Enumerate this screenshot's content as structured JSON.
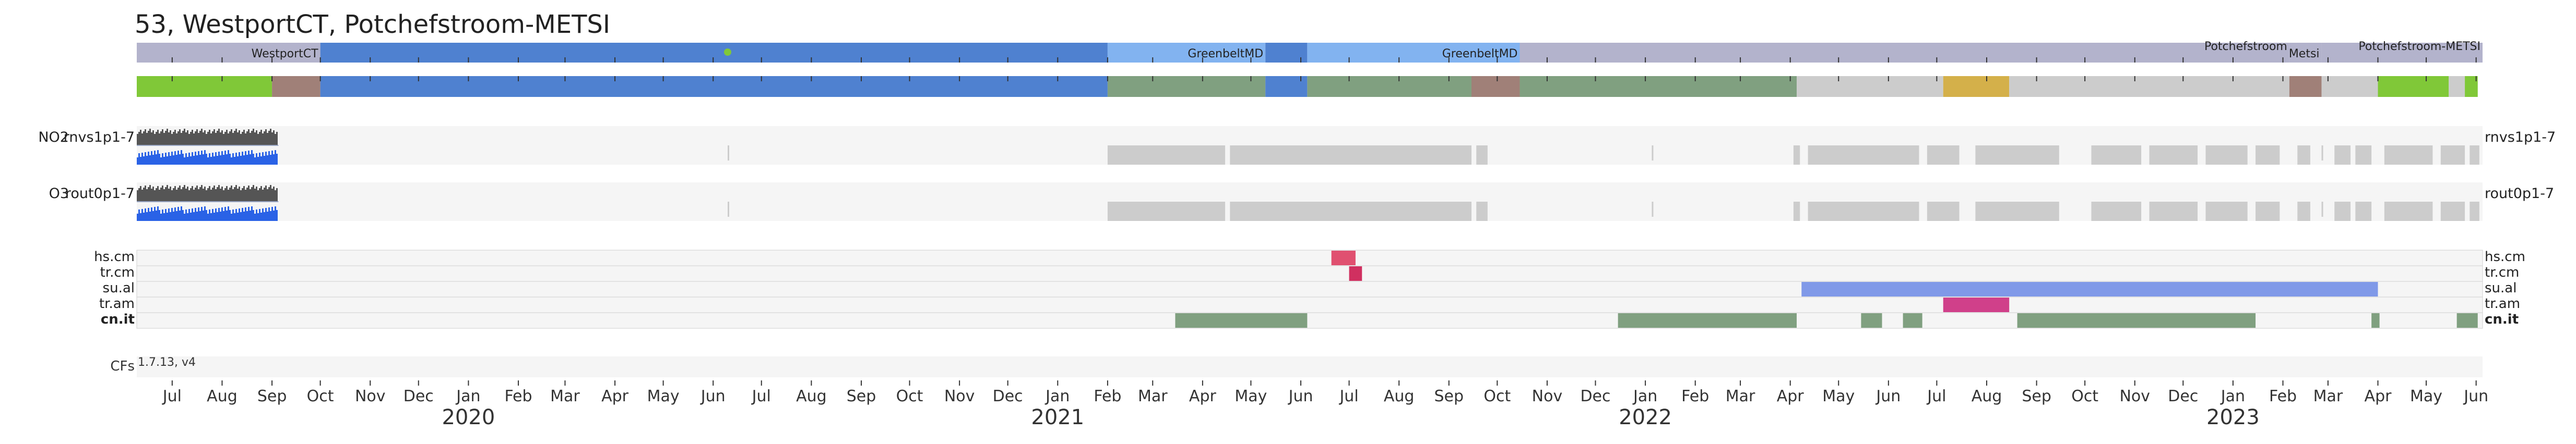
{
  "page": {
    "title": "53, WestportCT, Potchefstroom-METSI"
  },
  "chart_data": {
    "type": "timeline",
    "x_range": [
      "2019-06-09",
      "2023-06-05"
    ],
    "colors": {
      "location_bar": "#b3b3cc",
      "location_blue": "#4f81d0",
      "location_light_blue": "#82b3f0",
      "status_green": "#80c838",
      "status_brown": "#a08078",
      "status_blue": "#4f81d0",
      "status_sage": "#80a080",
      "status_gray": "#cccccc",
      "status_yellow": "#d4b04a",
      "panel_bg": "#f5f5f5",
      "gap_gray": "#cccccc",
      "series_dark": "#555555",
      "series_blue": "#2a62e6",
      "hs_cm": "#e05070",
      "tr_cm": "#d03060",
      "su_al": "#8099e8",
      "tr_am": "#d0408a",
      "cn_it": "#80a080"
    },
    "location_segments": [
      {
        "start": "2019-06-09",
        "end": "2019-10-01",
        "color": "location_bar",
        "label": "WestportCT"
      },
      {
        "start": "2019-10-01",
        "end": "2021-02-01",
        "color": "location_blue"
      },
      {
        "start": "2021-02-01",
        "end": "2021-05-10",
        "color": "location_light_blue",
        "label": "GreenbeltMD"
      },
      {
        "start": "2021-05-10",
        "end": "2021-06-05",
        "color": "location_blue"
      },
      {
        "start": "2021-06-05",
        "end": "2021-10-15",
        "color": "location_light_blue",
        "label": "GreenbeltMD"
      },
      {
        "start": "2021-10-15",
        "end": "2023-02-05",
        "color": "location_bar",
        "label": "Potchefstroom"
      },
      {
        "start": "2023-02-05",
        "end": "2023-02-25",
        "color": "location_bar",
        "label": "Metsi"
      },
      {
        "start": "2023-02-25",
        "end": "2023-06-05",
        "color": "location_bar",
        "label": "Potchefstroom-METSI"
      }
    ],
    "location_marker": "2020-06-10",
    "status_segments": [
      {
        "start": "2019-06-09",
        "end": "2019-09-01",
        "color": "status_green"
      },
      {
        "start": "2019-09-01",
        "end": "2019-10-01",
        "color": "status_brown"
      },
      {
        "start": "2019-10-01",
        "end": "2021-02-01",
        "color": "status_blue"
      },
      {
        "start": "2021-02-01",
        "end": "2021-05-10",
        "color": "status_sage"
      },
      {
        "start": "2021-05-10",
        "end": "2021-06-05",
        "color": "status_blue"
      },
      {
        "start": "2021-06-05",
        "end": "2021-09-15",
        "color": "status_sage"
      },
      {
        "start": "2021-09-15",
        "end": "2021-10-15",
        "color": "status_brown"
      },
      {
        "start": "2021-10-15",
        "end": "2022-04-05",
        "color": "status_sage"
      },
      {
        "start": "2022-04-05",
        "end": "2022-07-05",
        "color": "status_gray"
      },
      {
        "start": "2022-07-05",
        "end": "2022-08-15",
        "color": "status_yellow"
      },
      {
        "start": "2022-08-15",
        "end": "2023-02-05",
        "color": "status_gray"
      },
      {
        "start": "2023-02-05",
        "end": "2023-02-25",
        "color": "status_brown"
      },
      {
        "start": "2023-02-25",
        "end": "2023-04-01",
        "color": "status_gray"
      },
      {
        "start": "2023-04-01",
        "end": "2023-05-15",
        "color": "status_green"
      },
      {
        "start": "2023-05-15",
        "end": "2023-05-25",
        "color": "status_gray"
      },
      {
        "start": "2023-05-25",
        "end": "2023-06-02",
        "color": "status_green"
      }
    ],
    "series": [
      {
        "name": "NO2",
        "id": "rnvs1p1-7",
        "data_range": [
          "2019-06-09",
          "2019-09-05"
        ],
        "ticks": [
          "2020-06-10",
          "2021-09-20",
          "2022-01-05",
          "2023-02-25"
        ],
        "gaps": [
          [
            "2021-02-01",
            "2021-04-15"
          ],
          [
            "2021-04-18",
            "2021-09-15"
          ],
          [
            "2021-09-18",
            "2021-09-25"
          ],
          [
            "2022-04-03",
            "2022-04-07"
          ],
          [
            "2022-04-12",
            "2022-06-20"
          ],
          [
            "2022-06-25",
            "2022-07-15"
          ],
          [
            "2022-07-25",
            "2022-09-15"
          ],
          [
            "2022-10-05",
            "2022-11-05"
          ],
          [
            "2022-11-10",
            "2022-12-10"
          ],
          [
            "2022-12-15",
            "2023-01-10"
          ],
          [
            "2023-01-15",
            "2023-01-30"
          ],
          [
            "2023-02-10",
            "2023-02-18"
          ],
          [
            "2023-03-05",
            "2023-03-15"
          ],
          [
            "2023-03-18",
            "2023-03-28"
          ],
          [
            "2023-04-05",
            "2023-05-05"
          ],
          [
            "2023-05-10",
            "2023-05-25"
          ],
          [
            "2023-05-28",
            "2023-06-03"
          ]
        ]
      },
      {
        "name": "O3",
        "id": "rout0p1-7",
        "data_range": [
          "2019-06-09",
          "2019-09-05"
        ],
        "ticks": [
          "2020-06-10",
          "2021-09-20",
          "2022-01-05",
          "2023-02-25"
        ],
        "gaps": [
          [
            "2021-02-01",
            "2021-04-15"
          ],
          [
            "2021-04-18",
            "2021-09-15"
          ],
          [
            "2021-09-18",
            "2021-09-25"
          ],
          [
            "2022-04-03",
            "2022-04-07"
          ],
          [
            "2022-04-12",
            "2022-06-20"
          ],
          [
            "2022-06-25",
            "2022-07-15"
          ],
          [
            "2022-07-25",
            "2022-09-15"
          ],
          [
            "2022-10-05",
            "2022-11-05"
          ],
          [
            "2022-11-10",
            "2022-12-10"
          ],
          [
            "2022-12-15",
            "2023-01-10"
          ],
          [
            "2023-01-15",
            "2023-01-30"
          ],
          [
            "2023-02-10",
            "2023-02-18"
          ],
          [
            "2023-03-05",
            "2023-03-15"
          ],
          [
            "2023-03-18",
            "2023-03-28"
          ],
          [
            "2023-04-05",
            "2023-05-05"
          ],
          [
            "2023-05-10",
            "2023-05-25"
          ],
          [
            "2023-05-28",
            "2023-06-03"
          ]
        ]
      }
    ],
    "flag_rows": [
      {
        "name": "hs.cm",
        "bold": false,
        "color": "hs_cm",
        "spans": [
          [
            "2021-06-20",
            "2021-07-05"
          ]
        ]
      },
      {
        "name": "tr.cm",
        "bold": false,
        "color": "tr_cm",
        "spans": [
          [
            "2021-07-01",
            "2021-07-09"
          ]
        ]
      },
      {
        "name": "su.al",
        "bold": false,
        "color": "su_al",
        "spans": [
          [
            "2022-04-08",
            "2023-04-01"
          ]
        ]
      },
      {
        "name": "tr.am",
        "bold": false,
        "color": "tr_am",
        "spans": [
          [
            "2022-07-05",
            "2022-08-15"
          ]
        ]
      },
      {
        "name": "cn.it",
        "bold": true,
        "color": "cn_it",
        "spans": [
          [
            "2021-03-15",
            "2021-06-05"
          ],
          [
            "2021-12-15",
            "2022-04-05"
          ],
          [
            "2022-05-15",
            "2022-05-28"
          ],
          [
            "2022-06-10",
            "2022-06-22"
          ],
          [
            "2022-08-20",
            "2023-01-15"
          ],
          [
            "2023-03-28",
            "2023-04-02"
          ],
          [
            "2023-05-20",
            "2023-06-02"
          ]
        ]
      }
    ],
    "cfs": {
      "label": "CFs",
      "value": "1.7.13, v4"
    },
    "month_ticks": [
      "2019-07-01",
      "2019-08-01",
      "2019-09-01",
      "2019-10-01",
      "2019-11-01",
      "2019-12-01",
      "2020-01-01",
      "2020-02-01",
      "2020-03-01",
      "2020-04-01",
      "2020-05-01",
      "2020-06-01",
      "2020-07-01",
      "2020-08-01",
      "2020-09-01",
      "2020-10-01",
      "2020-11-01",
      "2020-12-01",
      "2021-01-01",
      "2021-02-01",
      "2021-03-01",
      "2021-04-01",
      "2021-05-01",
      "2021-06-01",
      "2021-07-01",
      "2021-08-01",
      "2021-09-01",
      "2021-10-01",
      "2021-11-01",
      "2021-12-01",
      "2022-01-01",
      "2022-02-01",
      "2022-03-01",
      "2022-04-01",
      "2022-05-01",
      "2022-06-01",
      "2022-07-01",
      "2022-08-01",
      "2022-09-01",
      "2022-10-01",
      "2022-11-01",
      "2022-12-01",
      "2023-01-01",
      "2023-02-01",
      "2023-03-01",
      "2023-04-01",
      "2023-05-01",
      "2023-06-01"
    ],
    "month_labels": [
      "Jul",
      "Aug",
      "Sep",
      "Oct",
      "Nov",
      "Dec",
      "Jan",
      "Feb",
      "Mar",
      "Apr",
      "May",
      "Jun",
      "Jul",
      "Aug",
      "Sep",
      "Oct",
      "Nov",
      "Dec",
      "Jan",
      "Feb",
      "Mar",
      "Apr",
      "May",
      "Jun",
      "Jul",
      "Aug",
      "Sep",
      "Oct",
      "Nov",
      "Dec",
      "Jan",
      "Feb",
      "Mar",
      "Apr",
      "May",
      "Jun",
      "Jul",
      "Aug",
      "Sep",
      "Oct",
      "Nov",
      "Dec",
      "Jan",
      "Feb",
      "Mar",
      "Apr",
      "May",
      "Jun"
    ],
    "year_labels": [
      {
        "label": "2020",
        "date": "2020-01-01"
      },
      {
        "label": "2021",
        "date": "2021-01-01"
      },
      {
        "label": "2022",
        "date": "2022-01-01"
      },
      {
        "label": "2023",
        "date": "2023-01-01"
      }
    ]
  }
}
